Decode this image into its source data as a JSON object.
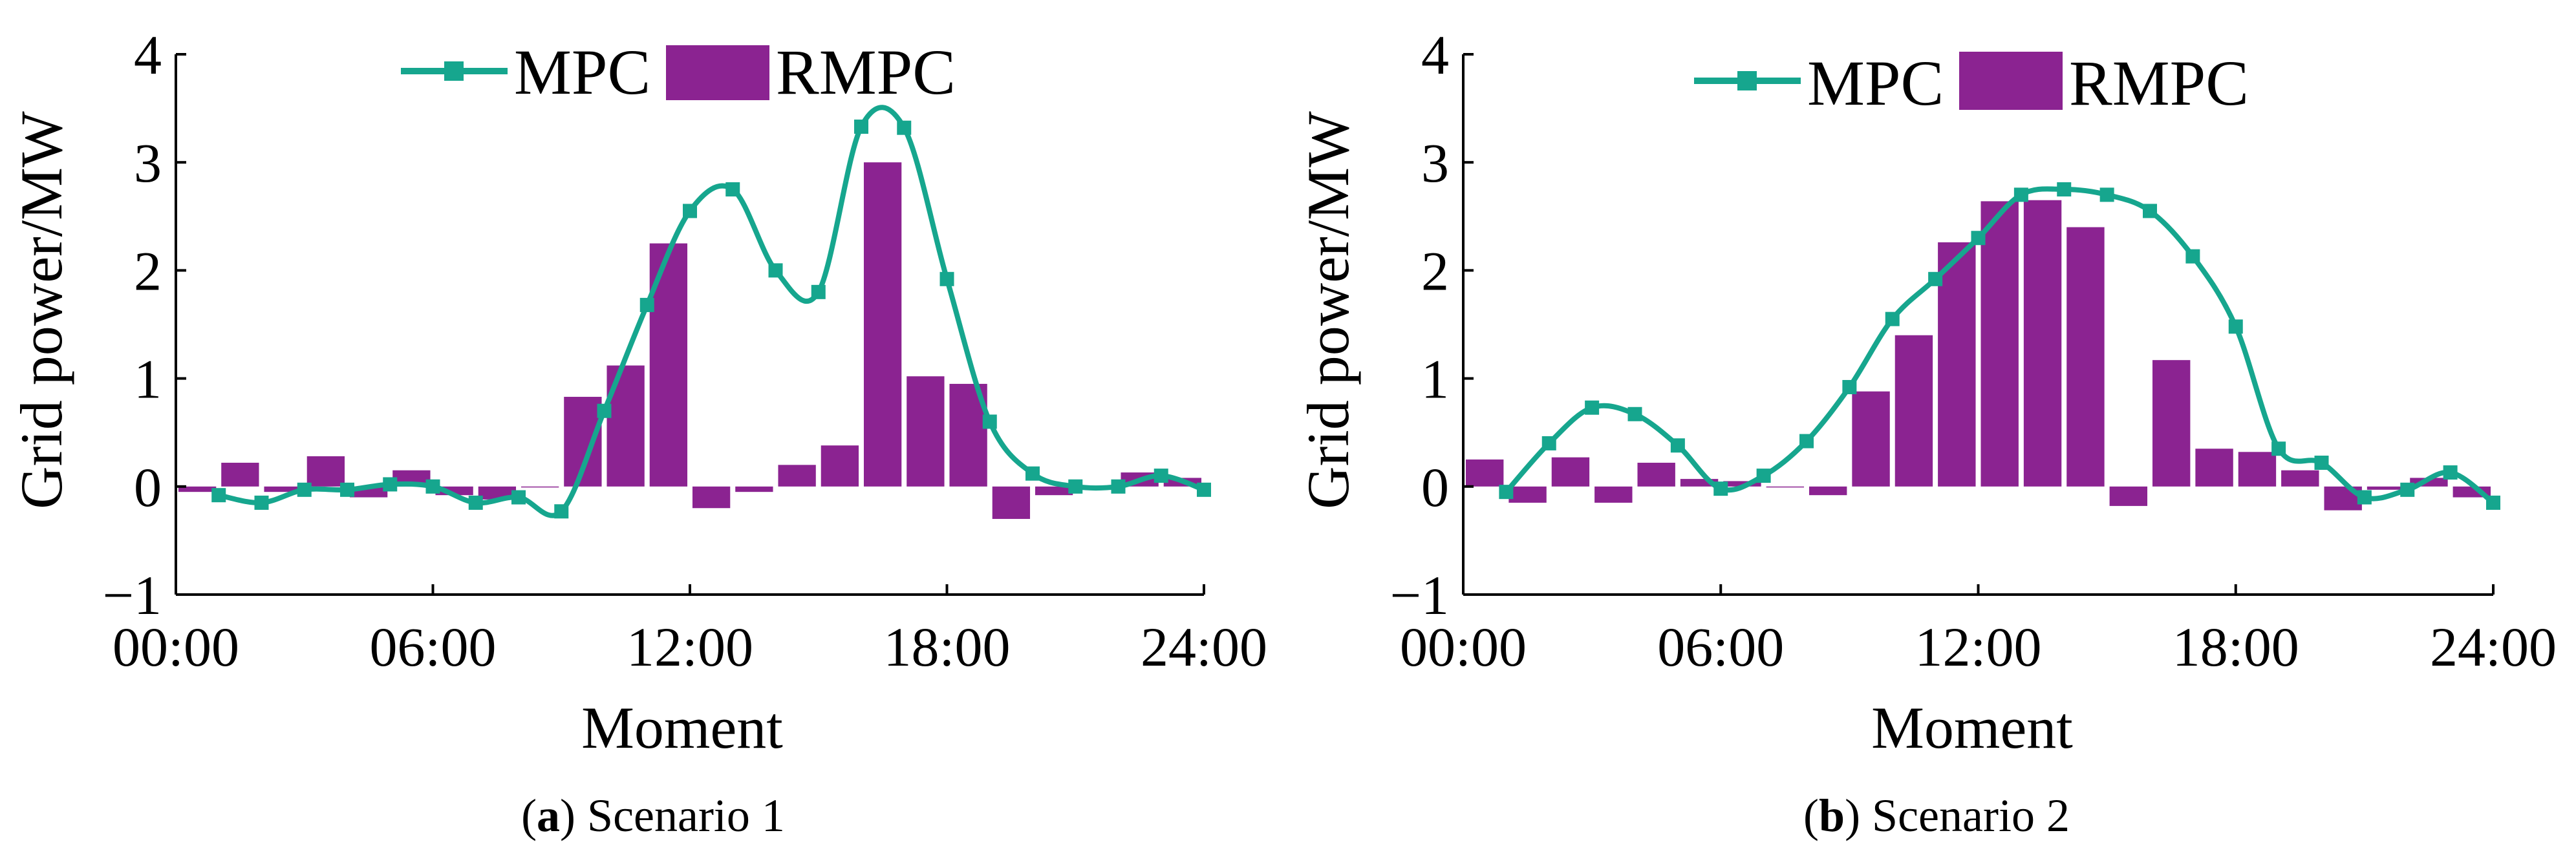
{
  "colors": {
    "mpc": "#16A68E",
    "rmpc": "#8B2391",
    "axis": "#000000"
  },
  "chart_data": [
    {
      "type": "bar+line",
      "panel_label": "a",
      "panel_caption": "Scenario 1",
      "xlabel": "Moment",
      "ylabel": "Grid power/MW",
      "ylim": [
        -1,
        4
      ],
      "yticks": [
        "−1",
        "0",
        "1",
        "2",
        "3",
        "4"
      ],
      "ytick_values": [
        -1,
        0,
        1,
        2,
        3,
        4
      ],
      "xlim": [
        0,
        24
      ],
      "xtick_values": [
        0,
        6,
        12,
        18,
        24
      ],
      "xticks": [
        "00:00",
        "06:00",
        "12:00",
        "18:00",
        "24:00"
      ],
      "legend": [
        "MPC",
        "RMPC"
      ],
      "series": [
        {
          "name": "MPC",
          "kind": "line",
          "x": [
            1,
            2,
            3,
            4,
            5,
            6,
            7,
            8,
            9,
            10,
            11,
            12,
            13,
            14,
            15,
            16,
            17,
            18,
            19,
            20,
            21,
            22,
            23,
            24
          ],
          "values": [
            -0.08,
            -0.15,
            -0.03,
            -0.03,
            0.02,
            0.0,
            -0.15,
            -0.1,
            -0.23,
            0.7,
            1.68,
            2.55,
            2.75,
            2.0,
            1.8,
            3.33,
            3.32,
            1.92,
            0.6,
            0.12,
            0.0,
            0.0,
            0.1,
            -0.03
          ]
        },
        {
          "name": "RMPC",
          "kind": "bar",
          "x": [
            1,
            2,
            3,
            4,
            5,
            6,
            7,
            8,
            9,
            10,
            11,
            12,
            13,
            14,
            15,
            16,
            17,
            18,
            19,
            20,
            21,
            22,
            23,
            24
          ],
          "values": [
            -0.05,
            0.22,
            -0.05,
            0.28,
            -0.1,
            0.15,
            -0.08,
            -0.12,
            0.0,
            0.83,
            1.12,
            2.25,
            -0.2,
            -0.05,
            0.2,
            0.38,
            3.0,
            1.02,
            0.95,
            -0.3,
            -0.08,
            0.0,
            0.13,
            0.08
          ]
        }
      ]
    },
    {
      "type": "bar+line",
      "panel_label": "b",
      "panel_caption": "Scenario 2",
      "xlabel": "Moment",
      "ylabel": "Grid power/MW",
      "ylim": [
        -1,
        4
      ],
      "yticks": [
        "−1",
        "0",
        "1",
        "2",
        "3",
        "4"
      ],
      "ytick_values": [
        -1,
        0,
        1,
        2,
        3,
        4
      ],
      "xlim": [
        0,
        24
      ],
      "xtick_values": [
        0,
        6,
        12,
        18,
        24
      ],
      "xticks": [
        "00:00",
        "06:00",
        "12:00",
        "18:00",
        "24:00"
      ],
      "legend": [
        "MPC",
        "RMPC"
      ],
      "series": [
        {
          "name": "MPC",
          "kind": "line",
          "x": [
            1,
            2,
            3,
            4,
            5,
            6,
            7,
            8,
            9,
            10,
            11,
            12,
            13,
            14,
            15,
            16,
            17,
            18,
            19,
            20,
            21,
            22,
            23,
            24
          ],
          "values": [
            -0.05,
            0.4,
            0.73,
            0.67,
            0.38,
            -0.02,
            0.1,
            0.42,
            0.92,
            1.55,
            1.92,
            2.3,
            2.7,
            2.75,
            2.7,
            2.55,
            2.13,
            1.48,
            0.35,
            0.22,
            -0.1,
            -0.03,
            0.13,
            -0.15
          ]
        },
        {
          "name": "RMPC",
          "kind": "bar",
          "x": [
            1,
            2,
            3,
            4,
            5,
            6,
            7,
            8,
            9,
            10,
            11,
            12,
            13,
            14,
            15,
            16,
            17,
            18,
            19,
            20,
            21,
            22,
            23,
            24
          ],
          "values": [
            0.25,
            -0.15,
            0.27,
            -0.15,
            0.22,
            0.07,
            0.05,
            0.0,
            -0.08,
            0.88,
            1.4,
            2.26,
            2.64,
            2.65,
            2.4,
            -0.18,
            1.17,
            0.35,
            0.32,
            0.15,
            -0.22,
            -0.03,
            0.08,
            -0.1
          ]
        }
      ]
    }
  ]
}
